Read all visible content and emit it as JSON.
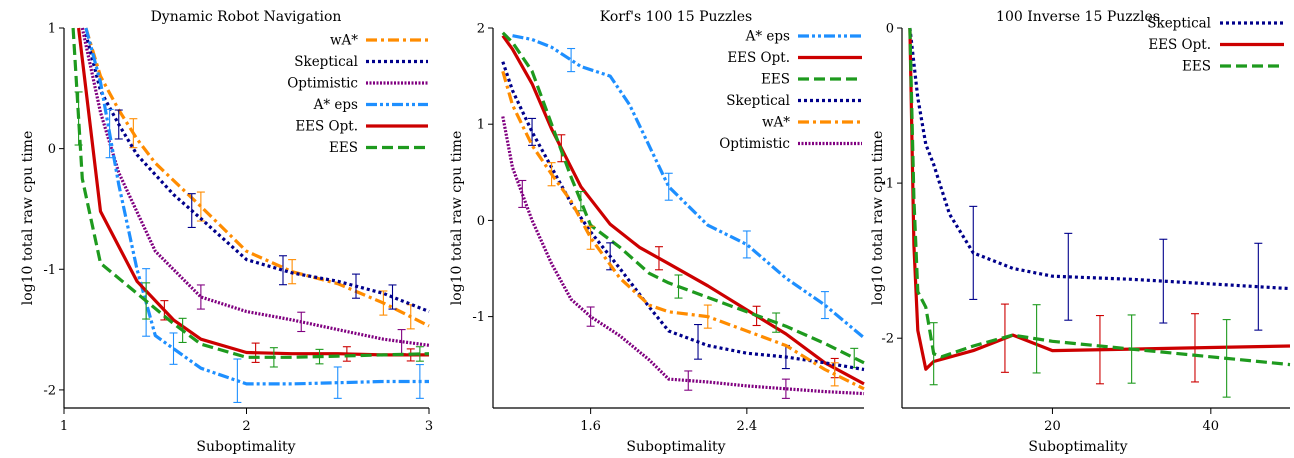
{
  "colors": {
    "wastar": "#ff8c00",
    "skeptical": "#00008b",
    "optimistic": "#800080",
    "astar_eps": "#1e8fff",
    "ees_opt": "#cc0000",
    "ees": "#1e9a1e"
  },
  "chart_data": [
    {
      "type": "line",
      "title": "Dynamic Robot Navigation",
      "xlabel": "Suboptimality",
      "ylabel": "log10 total raw cpu time",
      "xlim": [
        1,
        3
      ],
      "ylim": [
        -2.15,
        1.0
      ],
      "xticks": [
        1,
        2,
        3
      ],
      "yticks": [
        1,
        0,
        -1,
        -2
      ],
      "legend_position": "top-right",
      "grid": false,
      "series": [
        {
          "name": "wA*",
          "color_key": "wastar",
          "dash": "dashdot",
          "x": [
            1.12,
            1.2,
            1.3,
            1.4,
            1.5,
            1.75,
            2.0,
            2.25,
            2.5,
            2.75,
            3.0
          ],
          "y": [
            1.0,
            0.6,
            0.32,
            0.08,
            -0.12,
            -0.48,
            -0.85,
            -1.02,
            -1.12,
            -1.28,
            -1.47
          ],
          "err": [
            [
              1.38,
              0.12
            ],
            [
              1.75,
              0.12
            ],
            [
              2.25,
              0.1
            ],
            [
              2.75,
              0.1
            ],
            [
              2.9,
              0.1
            ]
          ]
        },
        {
          "name": "Skeptical",
          "color_key": "skeptical",
          "dash": "dot",
          "x": [
            1.12,
            1.2,
            1.3,
            1.4,
            1.6,
            1.75,
            2.0,
            2.25,
            2.5,
            2.75,
            3.0
          ],
          "y": [
            0.95,
            0.48,
            0.2,
            -0.05,
            -0.38,
            -0.58,
            -0.92,
            -1.03,
            -1.1,
            -1.2,
            -1.35
          ],
          "err": [
            [
              1.3,
              0.12
            ],
            [
              1.7,
              0.14
            ],
            [
              2.2,
              0.12
            ],
            [
              2.6,
              0.1
            ],
            [
              2.8,
              0.1
            ]
          ]
        },
        {
          "name": "Optimistic",
          "color_key": "optimistic",
          "dash": "fine",
          "x": [
            1.1,
            1.2,
            1.3,
            1.5,
            1.75,
            2.0,
            2.25,
            2.5,
            2.75,
            3.0
          ],
          "y": [
            1.0,
            0.3,
            -0.2,
            -0.85,
            -1.23,
            -1.35,
            -1.42,
            -1.5,
            -1.58,
            -1.63
          ],
          "err": [
            [
              1.75,
              0.1
            ],
            [
              2.3,
              0.08
            ],
            [
              2.85,
              0.1
            ]
          ]
        },
        {
          "name": "A* eps",
          "color_key": "astar_eps",
          "dash": "dashdotdot",
          "x": [
            1.12,
            1.2,
            1.3,
            1.4,
            1.5,
            1.75,
            2.0,
            2.25,
            2.5,
            2.75,
            3.0
          ],
          "y": [
            1.0,
            0.55,
            -0.3,
            -1.0,
            -1.55,
            -1.82,
            -1.95,
            -1.95,
            -1.94,
            -1.93,
            -1.93
          ],
          "err": [
            [
              1.25,
              0.2
            ],
            [
              1.45,
              0.28
            ],
            [
              1.6,
              0.13
            ],
            [
              1.95,
              0.18
            ],
            [
              2.5,
              0.13
            ],
            [
              2.95,
              0.14
            ]
          ]
        },
        {
          "name": "EES Opt.",
          "color_key": "ees_opt",
          "dash": "solid",
          "x": [
            1.08,
            1.2,
            1.4,
            1.6,
            1.75,
            2.0,
            2.25,
            2.5,
            2.75,
            3.0
          ],
          "y": [
            1.0,
            -0.52,
            -1.1,
            -1.42,
            -1.58,
            -1.69,
            -1.7,
            -1.7,
            -1.71,
            -1.71
          ],
          "err": [
            [
              1.55,
              0.08
            ],
            [
              2.05,
              0.08
            ],
            [
              2.55,
              0.06
            ],
            [
              2.9,
              0.05
            ]
          ]
        },
        {
          "name": "EES",
          "color_key": "ees",
          "dash": "dashed",
          "x": [
            1.05,
            1.1,
            1.2,
            1.4,
            1.6,
            1.75,
            2.0,
            2.25,
            2.5,
            2.75,
            3.0
          ],
          "y": [
            1.0,
            -0.25,
            -0.95,
            -1.2,
            -1.45,
            -1.62,
            -1.73,
            -1.73,
            -1.72,
            -1.71,
            -1.7
          ],
          "err": [
            [
              1.08,
              0.22
            ],
            [
              1.45,
              0.15
            ],
            [
              1.65,
              0.1
            ],
            [
              2.15,
              0.08
            ],
            [
              2.4,
              0.06
            ],
            [
              2.95,
              0.06
            ]
          ]
        }
      ]
    },
    {
      "type": "line",
      "title": "Korf's 100 15 Puzzles",
      "xlabel": "Suboptimality",
      "ylabel": "log10 total raw cpu time",
      "xlim": [
        1.1,
        3.0
      ],
      "ylim": [
        -1.95,
        2.0
      ],
      "xticks": [
        1.6,
        2.4
      ],
      "yticks": [
        2,
        1,
        0,
        -1
      ],
      "legend_position": "top-right",
      "grid": false,
      "series": [
        {
          "name": "A* eps",
          "color_key": "astar_eps",
          "dash": "dashdotdot",
          "x": [
            1.2,
            1.3,
            1.4,
            1.55,
            1.7,
            1.8,
            2.0,
            2.2,
            2.4,
            2.6,
            2.8,
            3.0
          ],
          "y": [
            1.92,
            1.88,
            1.8,
            1.6,
            1.5,
            1.2,
            0.35,
            -0.05,
            -0.25,
            -0.6,
            -0.88,
            -1.22
          ],
          "err": [
            [
              1.5,
              0.12
            ],
            [
              2.0,
              0.14
            ],
            [
              2.4,
              0.14
            ],
            [
              2.8,
              0.14
            ]
          ]
        },
        {
          "name": "EES Opt.",
          "color_key": "ees_opt",
          "dash": "solid",
          "x": [
            1.15,
            1.2,
            1.3,
            1.4,
            1.55,
            1.7,
            1.85,
            2.0,
            2.2,
            2.4,
            2.6,
            2.8,
            3.0
          ],
          "y": [
            1.92,
            1.78,
            1.42,
            0.95,
            0.35,
            -0.04,
            -0.28,
            -0.45,
            -0.68,
            -0.93,
            -1.18,
            -1.48,
            -1.7
          ],
          "err": [
            [
              1.45,
              0.14
            ],
            [
              1.95,
              0.12
            ],
            [
              2.45,
              0.1
            ],
            [
              2.85,
              0.1
            ]
          ]
        },
        {
          "name": "EES",
          "color_key": "ees",
          "dash": "dashed",
          "x": [
            1.15,
            1.2,
            1.3,
            1.4,
            1.5,
            1.6,
            1.75,
            1.9,
            2.0,
            2.2,
            2.4,
            2.6,
            2.8,
            3.0
          ],
          "y": [
            1.95,
            1.85,
            1.55,
            1.0,
            0.45,
            -0.05,
            -0.28,
            -0.55,
            -0.65,
            -0.8,
            -0.95,
            -1.1,
            -1.28,
            -1.48
          ],
          "err": [
            [
              1.55,
              0.1
            ],
            [
              2.05,
              0.12
            ],
            [
              2.55,
              0.1
            ],
            [
              2.95,
              0.1
            ]
          ]
        },
        {
          "name": "Skeptical",
          "color_key": "skeptical",
          "dash": "dot",
          "x": [
            1.15,
            1.2,
            1.3,
            1.4,
            1.5,
            1.6,
            1.75,
            1.9,
            2.0,
            2.2,
            2.4,
            2.6,
            2.8,
            3.0
          ],
          "y": [
            1.65,
            1.35,
            0.92,
            0.55,
            0.18,
            -0.12,
            -0.5,
            -0.9,
            -1.15,
            -1.3,
            -1.38,
            -1.42,
            -1.48,
            -1.55
          ],
          "err": [
            [
              1.3,
              0.14
            ],
            [
              1.7,
              0.14
            ],
            [
              2.15,
              0.18
            ],
            [
              2.6,
              0.12
            ]
          ]
        },
        {
          "name": "wA*",
          "color_key": "wastar",
          "dash": "dashdot",
          "x": [
            1.15,
            1.2,
            1.3,
            1.4,
            1.5,
            1.6,
            1.75,
            1.9,
            2.0,
            2.2,
            2.4,
            2.6,
            2.8,
            3.0
          ],
          "y": [
            1.55,
            1.2,
            0.78,
            0.48,
            0.2,
            -0.18,
            -0.6,
            -0.88,
            -0.95,
            -1.0,
            -1.15,
            -1.3,
            -1.55,
            -1.75
          ],
          "err": [
            [
              1.4,
              0.12
            ],
            [
              1.6,
              0.12
            ],
            [
              2.2,
              0.12
            ],
            [
              2.85,
              0.12
            ]
          ]
        },
        {
          "name": "Optimistic",
          "color_key": "optimistic",
          "dash": "fine",
          "x": [
            1.15,
            1.2,
            1.3,
            1.4,
            1.5,
            1.6,
            1.75,
            1.9,
            2.0,
            2.2,
            2.4,
            2.6,
            2.8,
            3.0
          ],
          "y": [
            1.08,
            0.55,
            0.0,
            -0.45,
            -0.82,
            -1.0,
            -1.2,
            -1.45,
            -1.65,
            -1.68,
            -1.72,
            -1.75,
            -1.78,
            -1.8
          ],
          "err": [
            [
              1.25,
              0.14
            ],
            [
              1.6,
              0.1
            ],
            [
              2.1,
              0.1
            ],
            [
              2.6,
              0.1
            ]
          ]
        }
      ]
    },
    {
      "type": "line",
      "title": "100 Inverse 15 Puzzles",
      "xlabel": "Suboptimality",
      "ylabel": "log10 total raw cpu time",
      "xlim": [
        1,
        50
      ],
      "ylim": [
        -2.45,
        0.0
      ],
      "xticks": [
        20,
        40
      ],
      "yticks": [
        0,
        -1,
        -2
      ],
      "legend_position": "top-right",
      "grid": false,
      "series": [
        {
          "name": "Skeptical",
          "color_key": "skeptical",
          "dash": "dot",
          "x": [
            2,
            3,
            4,
            5,
            7,
            10,
            15,
            20,
            30,
            40,
            50
          ],
          "y": [
            0.0,
            -0.45,
            -0.75,
            -0.88,
            -1.2,
            -1.45,
            -1.55,
            -1.6,
            -1.62,
            -1.65,
            -1.68
          ],
          "err": [
            [
              10,
              0.3
            ],
            [
              22,
              0.28
            ],
            [
              34,
              0.27
            ],
            [
              46,
              0.28
            ]
          ]
        },
        {
          "name": "EES Opt.",
          "color_key": "ees_opt",
          "dash": "solid",
          "x": [
            2,
            2.5,
            3,
            4,
            5,
            10,
            15,
            20,
            30,
            40,
            50
          ],
          "y": [
            0.0,
            -1.4,
            -1.95,
            -2.2,
            -2.15,
            -2.08,
            -1.98,
            -2.08,
            -2.07,
            -2.06,
            -2.05
          ],
          "err": [
            [
              14,
              0.22
            ],
            [
              26,
              0.22
            ],
            [
              38,
              0.22
            ]
          ]
        },
        {
          "name": "EES",
          "color_key": "ees",
          "dash": "dashed",
          "x": [
            2,
            2.5,
            3,
            4,
            5,
            6,
            10,
            15,
            20,
            30,
            40,
            50
          ],
          "y": [
            0.0,
            -1.1,
            -1.7,
            -1.8,
            -2.1,
            -2.12,
            -2.05,
            -1.98,
            -2.02,
            -2.07,
            -2.12,
            -2.17
          ],
          "err": [
            [
              5,
              0.2
            ],
            [
              18,
              0.22
            ],
            [
              30,
              0.22
            ],
            [
              42,
              0.25
            ]
          ]
        }
      ]
    }
  ]
}
